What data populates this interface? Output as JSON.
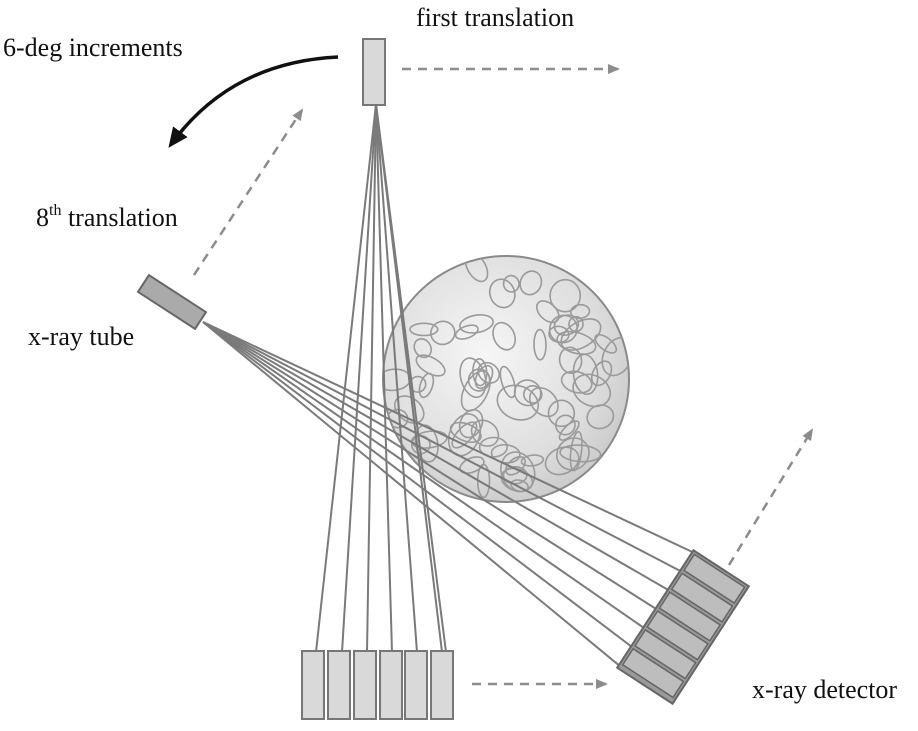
{
  "labels": {
    "first_translation": "first translation",
    "increments": "6-deg increments",
    "eighth_prefix": "8",
    "eighth_sup": "th",
    "eighth_suffix": " translation",
    "tube": "x-ray tube",
    "detector": "x-ray detector"
  },
  "colors": {
    "beam": "#7a7a7a",
    "dashed_arrow": "#8c8c8c",
    "rotation_arrow": "#111111",
    "detector_fill": "#d9d9d9",
    "detector_tilted_fill": "#bdbdbd",
    "tube_fill": "#aaaaaa",
    "phantom_fill": "#e8e8e8"
  },
  "diagram": {
    "detector_elements_row": 6,
    "detector_elements_tilted": 6,
    "beams_per_fan": 7
  }
}
